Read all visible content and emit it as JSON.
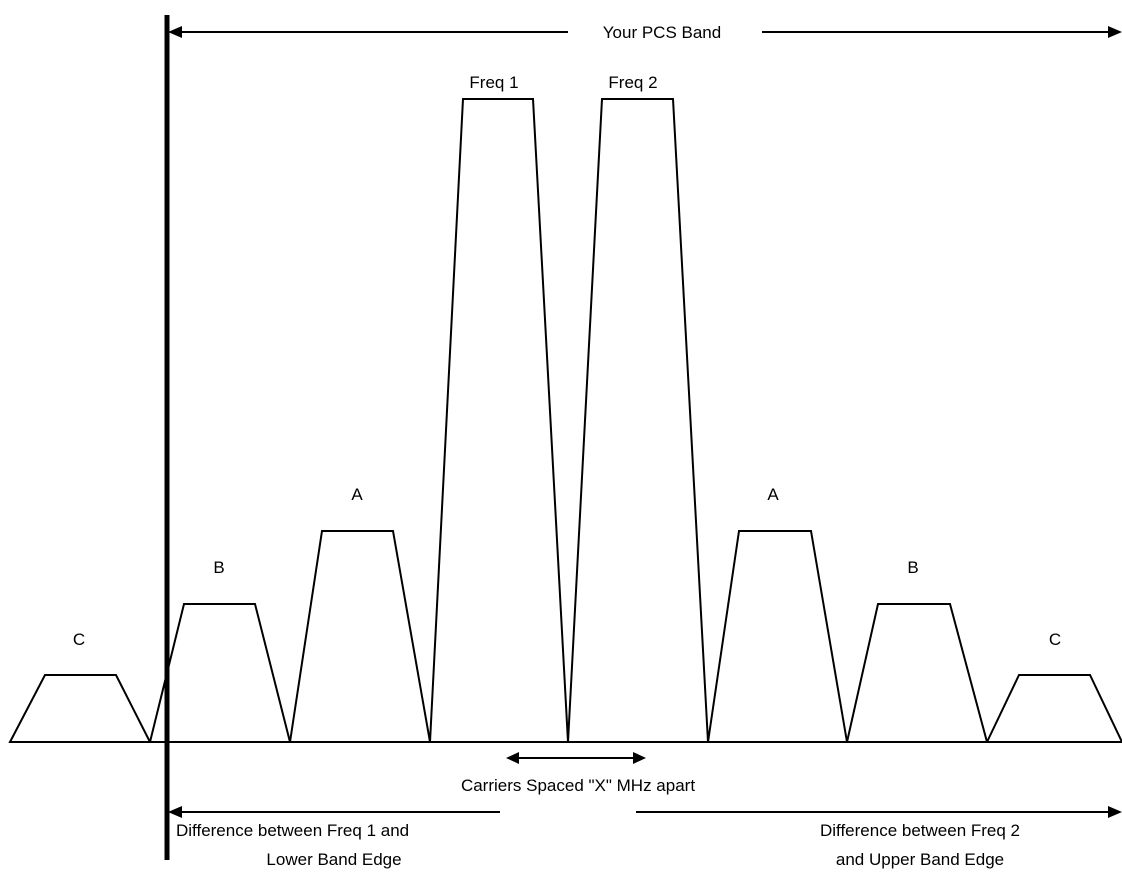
{
  "band_label": "Your PCS Band",
  "carriers": [
    {
      "id": "freq1",
      "label": "Freq 1"
    },
    {
      "id": "freq2",
      "label": "Freq 2"
    }
  ],
  "products": {
    "left": [
      {
        "id": "a-left",
        "label": "A"
      },
      {
        "id": "b-left",
        "label": "B"
      },
      {
        "id": "c-left",
        "label": "C"
      }
    ],
    "right": [
      {
        "id": "a-right",
        "label": "A"
      },
      {
        "id": "b-right",
        "label": "B"
      },
      {
        "id": "c-right",
        "label": "C"
      }
    ]
  },
  "spacing_label": "Carriers Spaced \"X\" MHz apart",
  "lower_difference": {
    "line1": "Difference between Freq 1 and",
    "line2": "Lower Band Edge"
  },
  "upper_difference": {
    "line1": "Difference between Freq 2",
    "line2": "and Upper Band Edge"
  },
  "colors": {
    "stroke": "#000000",
    "background": "#ffffff"
  }
}
